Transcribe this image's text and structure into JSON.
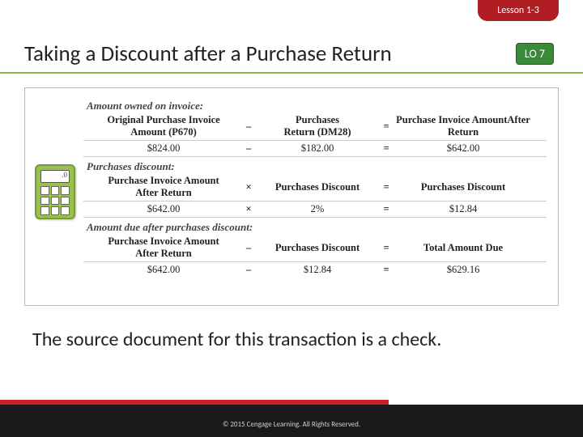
{
  "header": {
    "lesson_label": "Lesson 1-3",
    "title": "Taking a Discount after a Purchase Return",
    "lo_label": "LO 7"
  },
  "calculator": {
    "display": ".0"
  },
  "sections": [
    {
      "title": "Amount owned on invoice:",
      "header": {
        "col1_line1": "Original Purchase Invoice",
        "col1_line2": "Amount (P670)",
        "op1": "–",
        "col2_line1": "Purchases",
        "col2_line2": "Return (DM28)",
        "op2": "=",
        "col3_line1": "Purchase Invoice Amount",
        "col3_line2": "After Return"
      },
      "values": {
        "v1": "$824.00",
        "op1": "–",
        "v2": "$182.00",
        "op2": "=",
        "v3": "$642.00"
      }
    },
    {
      "title": "Purchases discount:",
      "header": {
        "col1_line1": "Purchase Invoice Amount",
        "col1_line2": "After Return",
        "op1": "×",
        "col2_line1": "Purchases Discount",
        "col2_line2": "",
        "op2": "=",
        "col3_line1": "Purchases Discount",
        "col3_line2": ""
      },
      "values": {
        "v1": "$642.00",
        "op1": "×",
        "v2": "2%",
        "op2": "=",
        "v3": "$12.84"
      }
    },
    {
      "title": "Amount due after purchases discount:",
      "header": {
        "col1_line1": "Purchase Invoice Amount",
        "col1_line2": "After Return",
        "op1": "–",
        "col2_line1": "Purchases Discount",
        "col2_line2": "",
        "op2": "=",
        "col3_line1": "Total Amount Due",
        "col3_line2": ""
      },
      "values": {
        "v1": "$642.00",
        "op1": "–",
        "v2": "$12.84",
        "op2": "=",
        "v3": "$629.16"
      }
    }
  ],
  "bottom_text": "The source document for this transaction is a check.",
  "footer": {
    "copyright": "© 2015 Cengage Learning. All Rights Reserved."
  },
  "colors": {
    "lesson_tab": "#b01e24",
    "lo_badge": "#3a8a3a",
    "green_underline": "#8fb848",
    "footer_red": "#c82127",
    "footer_black": "#1a1a1a"
  }
}
